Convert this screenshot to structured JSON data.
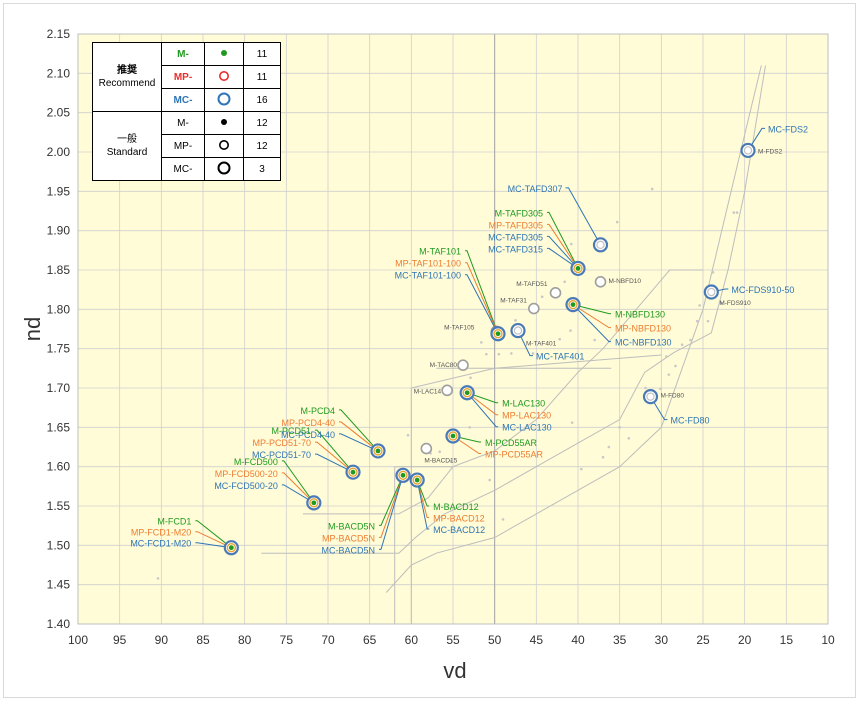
{
  "colors": {
    "plot_bg": "#fffcd7",
    "M": "#1f9a1f",
    "MP": "#ed7d31",
    "MC": "#2e75b6",
    "MC_ring": "#4a7ab5",
    "gray_ring": "#9e9e9e",
    "boundary": "#bdbdbd"
  },
  "legend": {
    "recommend_label_jp": "推奨",
    "recommend_label_en": "Recommend",
    "standard_label_jp": "一般",
    "standard_label_en": "Standard",
    "rows": [
      {
        "series": "M-",
        "count": "11",
        "color": "#1f9a1f",
        "symbol": "dot-filled"
      },
      {
        "series": "MP-",
        "count": "11",
        "color": "#ed2c2c",
        "symbol": "ring"
      },
      {
        "series": "MC-",
        "count": "16",
        "color": "#2e75b6",
        "symbol": "ring-large"
      },
      {
        "series": "M-",
        "count": "12",
        "color": "#000000",
        "symbol": "dot-filled"
      },
      {
        "series": "MP-",
        "count": "12",
        "color": "#000000",
        "symbol": "ring"
      },
      {
        "series": "MC-",
        "count": "3",
        "color": "#000000",
        "symbol": "ring-large"
      }
    ]
  },
  "chart_data": {
    "type": "scatter",
    "title": "",
    "xlabel": "vd",
    "ylabel": "nd",
    "xlim": [
      100,
      10
    ],
    "ylim": [
      1.4,
      2.15
    ],
    "x_reversed": true,
    "x_ticks": [
      "100",
      "95",
      "90",
      "85",
      "80",
      "75",
      "70",
      "65",
      "60",
      "55",
      "50",
      "45",
      "40",
      "35",
      "30",
      "25",
      "20",
      "15",
      "10"
    ],
    "y_ticks": [
      "1.40",
      "1.45",
      "1.50",
      "1.55",
      "1.60",
      "1.65",
      "1.70",
      "1.75",
      "1.80",
      "1.85",
      "1.90",
      "1.95",
      "2.00",
      "2.05",
      "2.10",
      "2.15"
    ],
    "grid": true,
    "recommended_points": [
      {
        "vd": 81.6,
        "nd": 1.497,
        "labels": [
          "M-FCD1",
          "MP-FCD1-M20",
          "MC-FCD1-M20"
        ]
      },
      {
        "vd": 71.7,
        "nd": 1.554,
        "labels": [
          "M-FCD500",
          "MP-FCD500-20",
          "MC-FCD500-20"
        ]
      },
      {
        "vd": 67.0,
        "nd": 1.593,
        "labels": [
          "M-PCD51",
          "MP-PCD51-70",
          "MC-PCD51-70"
        ]
      },
      {
        "vd": 64.0,
        "nd": 1.62,
        "labels": [
          "M-PCD4",
          "MP-PCD4-40",
          "MC-PCD4-40"
        ]
      },
      {
        "vd": 61.0,
        "nd": 1.589,
        "labels": [
          "M-BACD5N",
          "MP-BACD5N",
          "MC-BACD5N"
        ]
      },
      {
        "vd": 59.3,
        "nd": 1.583,
        "labels": [
          "M-BACD12",
          "MP-BACD12",
          "MC-BACD12"
        ]
      },
      {
        "vd": 55.0,
        "nd": 1.639,
        "labels": [
          "M-PCD55AR",
          "MP-PCD55AR"
        ]
      },
      {
        "vd": 53.3,
        "nd": 1.694,
        "labels": [
          "M-LAC130",
          "MP-LAC130",
          "MC-LAC130"
        ]
      },
      {
        "vd": 49.6,
        "nd": 1.769,
        "labels": [
          "M-TAF101",
          "MP-TAF101-100",
          "MC-TAF101-100"
        ]
      },
      {
        "vd": 40.0,
        "nd": 1.852,
        "labels": [
          "M-TAFD305",
          "MP-TAFD305",
          "MC-TAFD305",
          "MC-TAFD315"
        ]
      },
      {
        "vd": 40.6,
        "nd": 1.806,
        "labels": [
          "M-NBFD130",
          "MP-NBFD130",
          "MC-NBFD130"
        ]
      }
    ],
    "mc_only_points": [
      {
        "vd": 37.3,
        "nd": 1.882,
        "label": "MC-TAFD307"
      },
      {
        "vd": 47.2,
        "nd": 1.773,
        "label": "MC-TAF401"
      },
      {
        "vd": 31.3,
        "nd": 1.689,
        "label": "MC-FD80"
      },
      {
        "vd": 24.0,
        "nd": 1.822,
        "label": "MC-FDS910-50"
      },
      {
        "vd": 19.6,
        "nd": 2.002,
        "label": "MC-FDS2"
      }
    ],
    "standard_points": [
      {
        "vd": 58.2,
        "nd": 1.623,
        "label": "M-BACD15"
      },
      {
        "vd": 55.7,
        "nd": 1.697,
        "label": "M-LAC14"
      },
      {
        "vd": 53.8,
        "nd": 1.729,
        "label": "M-TAC80"
      },
      {
        "vd": 49.8,
        "nd": 1.772,
        "label": "M-TAF105"
      },
      {
        "vd": 45.3,
        "nd": 1.801,
        "label": "M-TAF31"
      },
      {
        "vd": 42.7,
        "nd": 1.821,
        "label": "M-TAFD51"
      },
      {
        "vd": 47.2,
        "nd": 1.773,
        "label": "M-TAF401"
      },
      {
        "vd": 37.3,
        "nd": 1.835,
        "label": "M-NBFD10"
      },
      {
        "vd": 31.3,
        "nd": 1.689,
        "label": "M-FD80"
      },
      {
        "vd": 24.0,
        "nd": 1.822,
        "label": "M-FDS910"
      },
      {
        "vd": 19.6,
        "nd": 2.002,
        "label": "M-FDS2"
      }
    ],
    "faint_points": [
      [
        90.4,
        1.458
      ],
      [
        49.0,
        1.533
      ],
      [
        50.6,
        1.583
      ],
      [
        56.6,
        1.619
      ],
      [
        60.4,
        1.64
      ],
      [
        57.7,
        1.617
      ],
      [
        55.3,
        1.607
      ],
      [
        53.0,
        1.65
      ],
      [
        52.9,
        1.713
      ],
      [
        51.6,
        1.758
      ],
      [
        51.0,
        1.743
      ],
      [
        49.5,
        1.743
      ],
      [
        48.0,
        1.744
      ],
      [
        45.4,
        1.744
      ],
      [
        42.2,
        1.762
      ],
      [
        40.9,
        1.773
      ],
      [
        47.5,
        1.786
      ],
      [
        44.3,
        1.816
      ],
      [
        41.6,
        1.835
      ],
      [
        40.3,
        1.85
      ],
      [
        40.8,
        1.883
      ],
      [
        35.3,
        1.911
      ],
      [
        36.3,
        1.625
      ],
      [
        37.0,
        1.612
      ],
      [
        33.9,
        1.636
      ],
      [
        39.6,
        1.597
      ],
      [
        40.7,
        1.656
      ],
      [
        35.0,
        1.65
      ],
      [
        30.1,
        1.699
      ],
      [
        29.1,
        1.717
      ],
      [
        28.3,
        1.728
      ],
      [
        27.5,
        1.755
      ],
      [
        26.5,
        1.761
      ],
      [
        25.4,
        1.805
      ],
      [
        23.8,
        1.847
      ],
      [
        22.8,
        1.808
      ],
      [
        21.3,
        1.923
      ],
      [
        20.9,
        1.923
      ],
      [
        24.4,
        1.785
      ],
      [
        31.1,
        1.953
      ],
      [
        38.0,
        1.761
      ],
      [
        29.4,
        1.74
      ],
      [
        31.9,
        1.7
      ],
      [
        25.7,
        1.785
      ]
    ],
    "boundary_lines": [
      {
        "points": [
          [
            78,
            1.49
          ],
          [
            61.5,
            1.49
          ],
          [
            59.5,
            1.51
          ],
          [
            56,
            1.54
          ],
          [
            50,
            1.57
          ],
          [
            45,
            1.6
          ],
          [
            40,
            1.63
          ],
          [
            35,
            1.66
          ],
          [
            32,
            1.72
          ],
          [
            28.5,
            1.745
          ],
          [
            24,
            1.77
          ],
          [
            22,
            1.85
          ],
          [
            20,
            1.95
          ],
          [
            17.5,
            2.11
          ]
        ]
      },
      {
        "points": [
          [
            73,
            1.54
          ],
          [
            61.5,
            1.54
          ],
          [
            58,
            1.56
          ],
          [
            55,
            1.6
          ],
          [
            50,
            1.62
          ],
          [
            45,
            1.66
          ],
          [
            40,
            1.72
          ],
          [
            37,
            1.75
          ],
          [
            33,
            1.8
          ],
          [
            29,
            1.85
          ],
          [
            25,
            1.85
          ]
        ]
      },
      {
        "points": [
          [
            63,
            1.44
          ],
          [
            60,
            1.475
          ],
          [
            57,
            1.49
          ],
          [
            50,
            1.51
          ],
          [
            45,
            1.54
          ],
          [
            40,
            1.57
          ],
          [
            35,
            1.6
          ],
          [
            30,
            1.65
          ],
          [
            25,
            1.8
          ],
          [
            20.5,
            2.0
          ],
          [
            18,
            2.11
          ]
        ]
      },
      {
        "points": [
          [
            62,
            1.4
          ],
          [
            62,
            1.6
          ],
          [
            55,
            1.6
          ]
        ]
      },
      {
        "points": [
          [
            60,
            1.4
          ],
          [
            60,
            1.7
          ],
          [
            50,
            1.725
          ],
          [
            30,
            1.742
          ]
        ]
      },
      {
        "points": [
          [
            57,
            1.725
          ],
          [
            36,
            1.725
          ]
        ]
      }
    ]
  }
}
